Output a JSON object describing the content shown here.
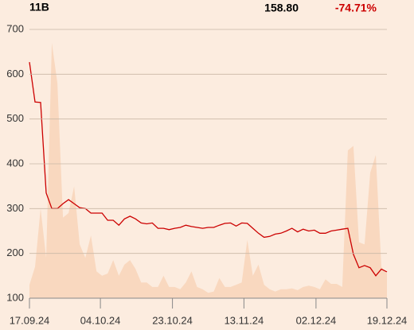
{
  "chart_data": {
    "type": "line",
    "annotations": [
      "11B",
      "158.80",
      "-74.71%"
    ],
    "annotation_colors": [
      "#000000",
      "#000000",
      "#cc0000"
    ],
    "x": [
      0,
      1,
      2,
      3,
      4,
      5,
      6,
      7,
      8,
      9,
      10,
      11,
      12,
      13,
      14,
      15,
      16,
      17,
      18,
      19,
      20,
      21,
      22,
      23,
      24,
      25,
      26,
      27,
      28,
      29,
      30,
      31,
      32,
      33,
      34,
      35,
      36,
      37,
      38,
      39,
      40,
      41,
      42,
      43,
      44,
      45,
      46,
      47,
      48,
      49,
      50,
      51,
      52,
      53,
      54,
      55,
      56,
      57,
      58,
      59,
      60,
      61,
      62,
      63,
      64
    ],
    "series": [
      {
        "style": "area",
        "color": "#f9d8bf",
        "values": [
          130,
          170,
          300,
          190,
          670,
          580,
          280,
          290,
          350,
          220,
          190,
          240,
          160,
          150,
          155,
          185,
          150,
          175,
          185,
          165,
          135,
          135,
          125,
          125,
          150,
          125,
          125,
          120,
          135,
          160,
          125,
          120,
          112,
          115,
          145,
          125,
          125,
          130,
          135,
          230,
          150,
          175,
          130,
          120,
          115,
          120,
          120,
          122,
          118,
          125,
          128,
          125,
          120,
          142,
          132,
          132,
          125,
          430,
          440,
          225,
          220,
          380,
          420,
          170,
          155
        ]
      },
      {
        "style": "line",
        "color": "#cc0000",
        "values": [
          627,
          538,
          537,
          335,
          300,
          300,
          311,
          320,
          311,
          302,
          300,
          290,
          290,
          290,
          274,
          274,
          263,
          277,
          283,
          277,
          268,
          266,
          268,
          256,
          256,
          253,
          256,
          258,
          263,
          260,
          258,
          256,
          258,
          258,
          263,
          267,
          268,
          261,
          268,
          267,
          256,
          245,
          236,
          238,
          243,
          245,
          250,
          256,
          248,
          254,
          250,
          252,
          245,
          245,
          250,
          252,
          254,
          256,
          198,
          168,
          173,
          168,
          150,
          165,
          158.8
        ]
      }
    ],
    "xlim": [
      0,
      64
    ],
    "xticks": [
      {
        "value": 0,
        "label": "17.09.24"
      },
      {
        "value": 12.7,
        "label": "04.10.24"
      },
      {
        "value": 25.6,
        "label": "23.10.24"
      },
      {
        "value": 38.4,
        "label": "13.11.24"
      },
      {
        "value": 51.3,
        "label": "02.12.24"
      },
      {
        "value": 64,
        "label": "19.12.24"
      }
    ],
    "ylim": [
      100,
      700
    ],
    "yticks": [
      100,
      200,
      300,
      400,
      500,
      600,
      700
    ],
    "grid": true
  }
}
